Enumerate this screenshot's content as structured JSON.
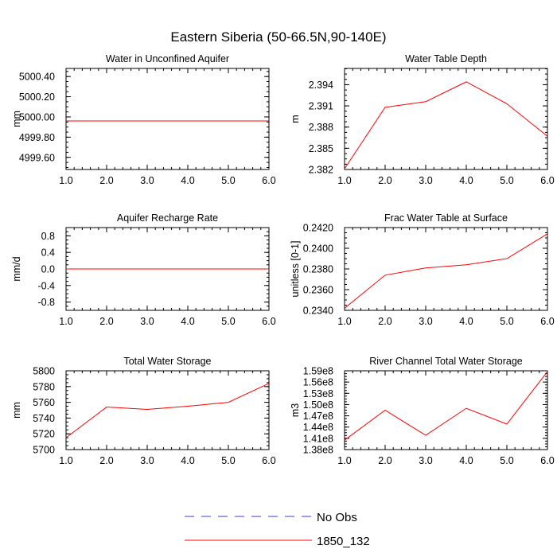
{
  "figure": {
    "title": "Eastern Siberia (50-66.5N,90-140E)",
    "legend": [
      {
        "label": "No Obs",
        "color": "#3b3bd9",
        "style": "dashed"
      },
      {
        "label": "1850_132",
        "color": "#ff0000",
        "style": "solid"
      }
    ]
  },
  "chart_data": [
    {
      "type": "line",
      "title": "Water in Unconfined Aquifer",
      "ylabel": "mm",
      "x": [
        1,
        2,
        3,
        4,
        5,
        6
      ],
      "xlim": [
        1,
        6
      ],
      "xticks": [
        "1.0",
        "2.0",
        "3.0",
        "4.0",
        "5.0",
        "6.0"
      ],
      "ylim": [
        4999.48,
        5000.48
      ],
      "yticks": [
        {
          "value": 4999.6,
          "label": "4999.60"
        },
        {
          "value": 4999.8,
          "label": "4999.80"
        },
        {
          "value": 5000.0,
          "label": "5000.00"
        },
        {
          "value": 5000.2,
          "label": "5000.20"
        },
        {
          "value": 5000.4,
          "label": "5000.40"
        }
      ],
      "series": [
        {
          "name": "1850_132",
          "color": "#ff0000",
          "values": [
            4999.96,
            4999.96,
            4999.96,
            4999.96,
            4999.96,
            4999.96
          ]
        }
      ]
    },
    {
      "type": "line",
      "title": "Water Table Depth",
      "ylabel": "m",
      "x": [
        1,
        2,
        3,
        4,
        5,
        6
      ],
      "xlim": [
        1,
        6
      ],
      "xticks": [
        "1.0",
        "2.0",
        "3.0",
        "4.0",
        "5.0",
        "6.0"
      ],
      "ylim": [
        2.382,
        2.3963
      ],
      "yticks": [
        {
          "value": 2.382,
          "label": "2.382"
        },
        {
          "value": 2.385,
          "label": "2.385"
        },
        {
          "value": 2.388,
          "label": "2.388"
        },
        {
          "value": 2.391,
          "label": "2.391"
        },
        {
          "value": 2.394,
          "label": "2.394"
        }
      ],
      "series": [
        {
          "name": "1850_132",
          "color": "#ff0000",
          "values": [
            2.3821,
            2.3908,
            2.3916,
            2.3944,
            2.3913,
            2.3867
          ]
        }
      ]
    },
    {
      "type": "line",
      "title": "Aquifer Recharge Rate",
      "ylabel": "mm/d",
      "x": [
        1,
        2,
        3,
        4,
        5,
        6
      ],
      "xlim": [
        1,
        6
      ],
      "xticks": [
        "1.0",
        "2.0",
        "3.0",
        "4.0",
        "5.0",
        "6.0"
      ],
      "ylim": [
        -1.0,
        1.0
      ],
      "yticks": [
        {
          "value": -0.8,
          "label": "-0.8"
        },
        {
          "value": -0.4,
          "label": "-0.4"
        },
        {
          "value": 0.0,
          "label": "0.0"
        },
        {
          "value": 0.4,
          "label": "0.4"
        },
        {
          "value": 0.8,
          "label": "0.8"
        }
      ],
      "series": [
        {
          "name": "1850_132",
          "color": "#ff0000",
          "values": [
            0,
            0,
            0,
            0,
            0,
            0
          ]
        }
      ]
    },
    {
      "type": "line",
      "title": "Frac Water Table at Surface",
      "ylabel": "unitless [0-1]",
      "x": [
        1,
        2,
        3,
        4,
        5,
        6
      ],
      "xlim": [
        1,
        6
      ],
      "xticks": [
        "1.0",
        "2.0",
        "3.0",
        "4.0",
        "5.0",
        "6.0"
      ],
      "ylim": [
        0.234,
        0.242
      ],
      "yticks": [
        {
          "value": 0.234,
          "label": "0.2340"
        },
        {
          "value": 0.236,
          "label": "0.2360"
        },
        {
          "value": 0.238,
          "label": "0.2380"
        },
        {
          "value": 0.24,
          "label": "0.2400"
        },
        {
          "value": 0.242,
          "label": "0.2420"
        }
      ],
      "series": [
        {
          "name": "1850_132",
          "color": "#ff0000",
          "values": [
            0.2342,
            0.2374,
            0.2381,
            0.2384,
            0.239,
            0.2414
          ]
        }
      ]
    },
    {
      "type": "line",
      "title": "Total Water Storage",
      "ylabel": "mm",
      "x": [
        1,
        2,
        3,
        4,
        5,
        6
      ],
      "xlim": [
        1,
        6
      ],
      "xticks": [
        "1.0",
        "2.0",
        "3.0",
        "4.0",
        "5.0",
        "6.0"
      ],
      "ylim": [
        5700,
        5800
      ],
      "yticks": [
        {
          "value": 5700,
          "label": "5700"
        },
        {
          "value": 5720,
          "label": "5720"
        },
        {
          "value": 5740,
          "label": "5740"
        },
        {
          "value": 5760,
          "label": "5760"
        },
        {
          "value": 5780,
          "label": "5780"
        },
        {
          "value": 5800,
          "label": "5800"
        }
      ],
      "series": [
        {
          "name": "1850_132",
          "color": "#ff0000",
          "values": [
            5715,
            5754,
            5751,
            5755,
            5760,
            5784
          ]
        }
      ]
    },
    {
      "type": "line",
      "title": "River Channel Total Water Storage",
      "ylabel": "m3",
      "x": [
        1,
        2,
        3,
        4,
        5,
        6
      ],
      "xlim": [
        1,
        6
      ],
      "xticks": [
        "1.0",
        "2.0",
        "3.0",
        "4.0",
        "5.0",
        "6.0"
      ],
      "ylim": [
        138000000.0,
        159000000.0
      ],
      "yticks": [
        {
          "value": 138000000.0,
          "label": "1.38e8"
        },
        {
          "value": 141000000.0,
          "label": "1.41e8"
        },
        {
          "value": 144000000.0,
          "label": "1.44e8"
        },
        {
          "value": 147000000.0,
          "label": "1.47e8"
        },
        {
          "value": 150000000.0,
          "label": "1.50e8"
        },
        {
          "value": 153000000.0,
          "label": "1.53e8"
        },
        {
          "value": 156000000.0,
          "label": "1.56e8"
        },
        {
          "value": 159000000.0,
          "label": "1.59e8"
        }
      ],
      "series": [
        {
          "name": "1850_132",
          "color": "#ff0000",
          "values": [
            140500000.0,
            148500000.0,
            141800000.0,
            149000000.0,
            144800000.0,
            158800000.0
          ]
        }
      ]
    }
  ]
}
